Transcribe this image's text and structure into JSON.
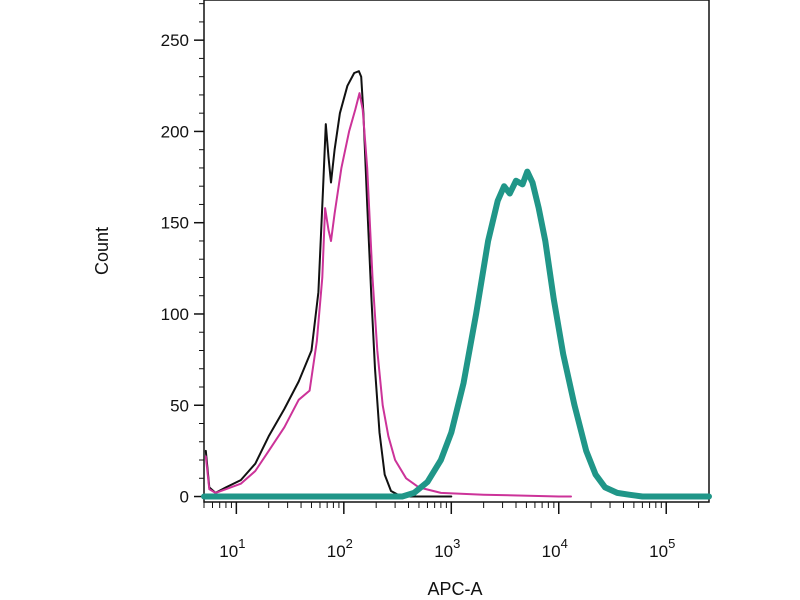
{
  "chart_data": {
    "type": "line",
    "title": "",
    "xlabel": "APC-A",
    "ylabel": "Count",
    "x_scale": "log",
    "xlim": [
      5,
      250000
    ],
    "ylim": [
      -3,
      272
    ],
    "grid": false,
    "legend": "none",
    "x_ticks": [
      {
        "value": 10,
        "base": "10",
        "exp": "1"
      },
      {
        "value": 100,
        "base": "10",
        "exp": "2"
      },
      {
        "value": 1000,
        "base": "10",
        "exp": "3"
      },
      {
        "value": 10000,
        "base": "10",
        "exp": "4"
      },
      {
        "value": 100000,
        "base": "10",
        "exp": "5"
      }
    ],
    "y_ticks": [
      0,
      50,
      100,
      150,
      200,
      250
    ],
    "series": [
      {
        "color": "#111111",
        "width": 2,
        "points": [
          [
            5.2,
            25
          ],
          [
            5.6,
            5
          ],
          [
            6.4,
            2
          ],
          [
            8,
            5
          ],
          [
            11,
            9
          ],
          [
            15,
            18
          ],
          [
            20,
            33
          ],
          [
            28,
            48
          ],
          [
            38,
            63
          ],
          [
            50,
            80
          ],
          [
            58,
            112
          ],
          [
            64,
            168
          ],
          [
            68,
            204
          ],
          [
            72,
            186
          ],
          [
            76,
            172
          ],
          [
            82,
            190
          ],
          [
            92,
            210
          ],
          [
            108,
            225
          ],
          [
            125,
            232
          ],
          [
            138,
            233
          ],
          [
            145,
            230
          ],
          [
            152,
            210
          ],
          [
            165,
            160
          ],
          [
            180,
            110
          ],
          [
            195,
            70
          ],
          [
            215,
            35
          ],
          [
            240,
            12
          ],
          [
            275,
            3
          ],
          [
            320,
            1
          ],
          [
            400,
            0
          ],
          [
            1000,
            0
          ]
        ]
      },
      {
        "color": "#cc3399",
        "width": 2,
        "points": [
          [
            5.2,
            22
          ],
          [
            5.6,
            4
          ],
          [
            6.4,
            2
          ],
          [
            8,
            4
          ],
          [
            11,
            7
          ],
          [
            15,
            14
          ],
          [
            20,
            25
          ],
          [
            28,
            38
          ],
          [
            38,
            53
          ],
          [
            48,
            58
          ],
          [
            56,
            85
          ],
          [
            63,
            120
          ],
          [
            67,
            158
          ],
          [
            72,
            146
          ],
          [
            76,
            140
          ],
          [
            82,
            155
          ],
          [
            95,
            180
          ],
          [
            112,
            200
          ],
          [
            128,
            212
          ],
          [
            140,
            221
          ],
          [
            150,
            212
          ],
          [
            165,
            180
          ],
          [
            185,
            120
          ],
          [
            205,
            80
          ],
          [
            230,
            50
          ],
          [
            260,
            33
          ],
          [
            300,
            20
          ],
          [
            380,
            10
          ],
          [
            500,
            5
          ],
          [
            800,
            2
          ],
          [
            2000,
            1
          ],
          [
            10000,
            0
          ],
          [
            13000,
            0
          ]
        ]
      },
      {
        "color": "#209688",
        "width": 6,
        "points": [
          [
            5,
            0
          ],
          [
            350,
            0
          ],
          [
            450,
            2
          ],
          [
            600,
            8
          ],
          [
            800,
            20
          ],
          [
            1000,
            35
          ],
          [
            1300,
            62
          ],
          [
            1700,
            100
          ],
          [
            2200,
            140
          ],
          [
            2700,
            162
          ],
          [
            3100,
            170
          ],
          [
            3500,
            166
          ],
          [
            4000,
            173
          ],
          [
            4600,
            171
          ],
          [
            5100,
            178
          ],
          [
            5700,
            172
          ],
          [
            6500,
            158
          ],
          [
            7500,
            140
          ],
          [
            9000,
            108
          ],
          [
            11000,
            78
          ],
          [
            14000,
            50
          ],
          [
            18000,
            25
          ],
          [
            22000,
            12
          ],
          [
            27000,
            5
          ],
          [
            35000,
            2
          ],
          [
            45000,
            1
          ],
          [
            60000,
            0
          ],
          [
            250000,
            0
          ]
        ]
      }
    ]
  },
  "colors": {
    "axis": "#111111",
    "background": "#ffffff"
  }
}
